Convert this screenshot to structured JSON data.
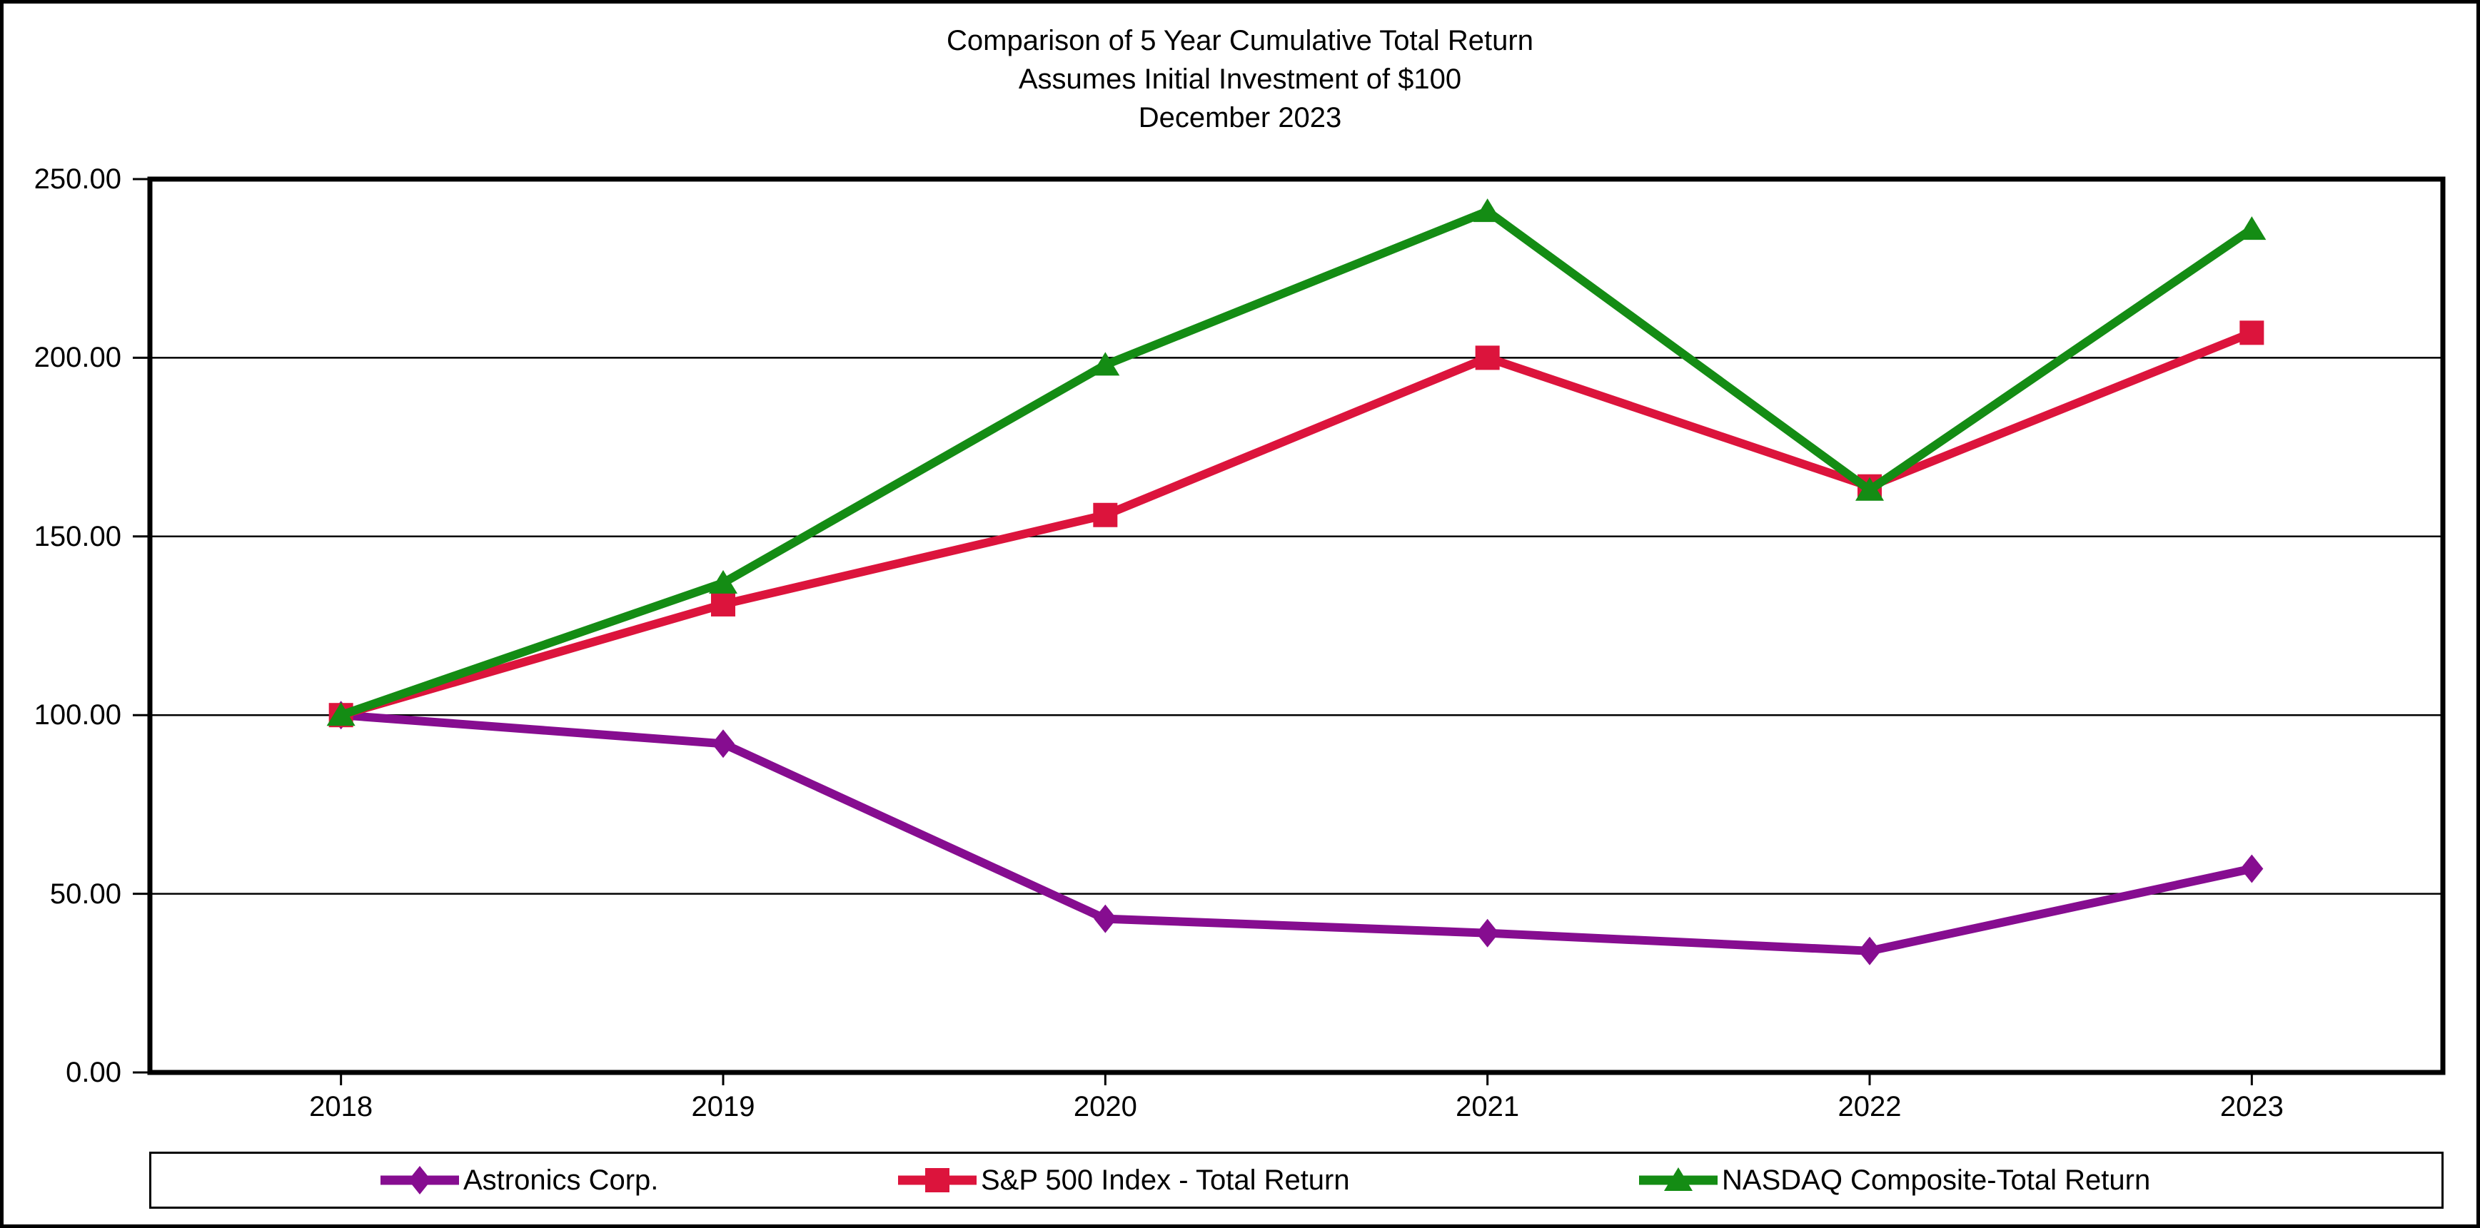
{
  "chart_data": {
    "type": "line",
    "title_lines": [
      "Comparison of 5 Year Cumulative Total Return",
      "Assumes Initial Investment of $100",
      "December 2023"
    ],
    "x_categories": [
      "2018",
      "2019",
      "2020",
      "2021",
      "2022",
      "2023"
    ],
    "y_axis": {
      "min": 0,
      "max": 250,
      "tick_step": 50,
      "tick_labels_top_to_bottom": [
        "250.00",
        "200.00",
        "150.00",
        "100.00",
        "50.00",
        "0.00"
      ]
    },
    "grid": true,
    "legend_position": "bottom",
    "axis_color": "#000000",
    "background_color": "#ffffff",
    "series": [
      {
        "name": "Astronics Corp.",
        "color": "#860D90",
        "marker": "diamond",
        "values": [
          100,
          92,
          43,
          39,
          34,
          57
        ]
      },
      {
        "name": "S&P 500 Index - Total Return",
        "color": "#DC143C",
        "marker": "square",
        "values": [
          100,
          131,
          156,
          200,
          164,
          207
        ]
      },
      {
        "name": "NASDAQ Composite-Total Return",
        "color": "#148C14",
        "marker": "triangle",
        "values": [
          100,
          137,
          198,
          241,
          163,
          236
        ]
      }
    ]
  }
}
